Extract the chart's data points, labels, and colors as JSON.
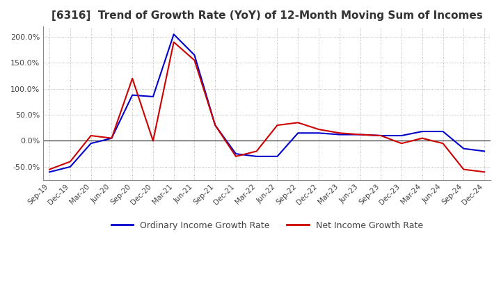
{
  "title": "[6316]  Trend of Growth Rate (YoY) of 12-Month Moving Sum of Incomes",
  "title_fontsize": 11,
  "background_color": "#ffffff",
  "grid_color": "#aaaaaa",
  "ylim": [
    -75,
    220
  ],
  "yticks": [
    -50,
    0,
    50,
    100,
    150,
    200
  ],
  "legend_labels": [
    "Ordinary Income Growth Rate",
    "Net Income Growth Rate"
  ],
  "line_colors": [
    "#0000cc",
    "#cc0000"
  ],
  "x_labels": [
    "Sep-19",
    "Dec-19",
    "Mar-20",
    "Jun-20",
    "Sep-20",
    "Dec-20",
    "Mar-21",
    "Jun-21",
    "Sep-21",
    "Dec-21",
    "Mar-22",
    "Jun-22",
    "Sep-22",
    "Dec-22",
    "Mar-23",
    "Jun-23",
    "Sep-23",
    "Dec-23",
    "Mar-24",
    "Jun-24",
    "Sep-24",
    "Dec-24"
  ],
  "ordinary_income": [
    -60,
    -50,
    -5,
    5,
    88,
    85,
    205,
    165,
    30,
    -25,
    -30,
    -30,
    15,
    15,
    12,
    12,
    10,
    10,
    18,
    18,
    -15,
    -20
  ],
  "net_income": [
    -55,
    -40,
    10,
    5,
    120,
    0,
    190,
    155,
    30,
    -30,
    -20,
    30,
    35,
    22,
    15,
    12,
    10,
    -5,
    5,
    -5,
    -55,
    -60
  ]
}
